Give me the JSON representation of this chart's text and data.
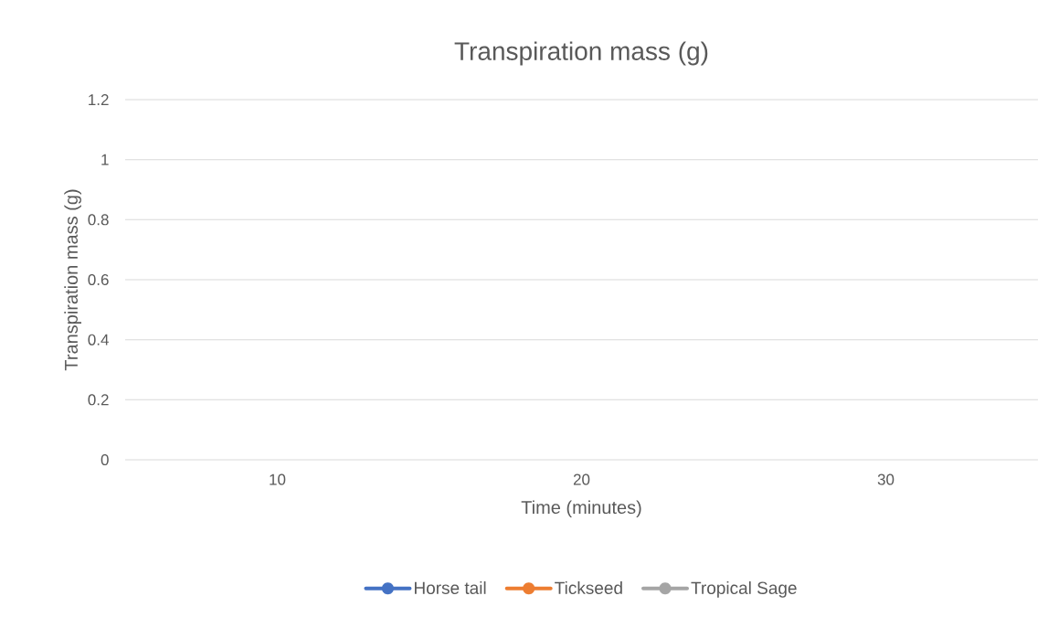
{
  "chart_data": {
    "type": "line",
    "title": "Transpiration mass (g)",
    "xlabel": "Time (minutes)",
    "ylabel": "Transpiration mass (g)",
    "categories": [
      "10",
      "20",
      "30"
    ],
    "series": [
      {
        "name": "Horse tail",
        "color": "#4472c4",
        "values": [
          null,
          null,
          null
        ]
      },
      {
        "name": "Tickseed",
        "color": "#ed7d31",
        "values": [
          null,
          null,
          null
        ]
      },
      {
        "name": "Tropical Sage",
        "color": "#a5a5a5",
        "values": [
          null,
          null,
          null
        ]
      }
    ],
    "ylim": [
      0,
      1.2
    ],
    "yticks": [
      0,
      0.2,
      0.4,
      0.6,
      0.8,
      1,
      1.2
    ],
    "grid": "y",
    "legend": "bottom",
    "marker": "circle",
    "line_style": "solid"
  }
}
